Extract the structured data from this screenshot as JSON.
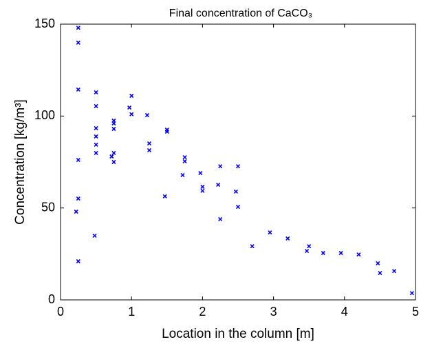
{
  "chart_data": {
    "type": "scatter",
    "title": "Final concentration of CaCO₃",
    "x_label": "Location in the column [m]",
    "y_label": "Concentration [kg/m³]",
    "marker": "x",
    "color": "#0000ff",
    "x": [
      0.22,
      0.25,
      0.25,
      0.25,
      0.25,
      0.25,
      0.25,
      0.48,
      0.5,
      0.5,
      0.5,
      0.5,
      0.5,
      0.5,
      0.72,
      0.75,
      0.75,
      0.75,
      0.75,
      0.75,
      0.97,
      1.0,
      1.0,
      1.22,
      1.25,
      1.25,
      1.47,
      1.5,
      1.5,
      1.72,
      1.75,
      1.75,
      1.97,
      2.0,
      2.0,
      2.22,
      2.25,
      2.25,
      2.47,
      2.5,
      2.5,
      2.7,
      2.95,
      3.2,
      3.47,
      3.5,
      3.7,
      3.95,
      4.2,
      4.47,
      4.5,
      4.7,
      4.95
    ],
    "values": [
      48,
      148,
      139.9,
      114.4,
      76.1,
      55.1,
      21,
      34.9,
      112.9,
      105.4,
      93.4,
      88.9,
      84.4,
      79.9,
      78,
      97.5,
      96,
      93,
      79.9,
      75,
      104.6,
      111,
      101,
      100.5,
      85.1,
      81.4,
      56.3,
      92.6,
      91.5,
      67.9,
      77.6,
      75.4,
      69,
      61.5,
      59.3,
      62.6,
      72.7,
      43.9,
      58.9,
      72.7,
      50.6,
      29.2,
      36.7,
      33.4,
      26.6,
      29.2,
      25.5,
      25.5,
      24.7,
      19.9,
      14.6,
      15.7,
      3.7
    ],
    "xlim": [
      0,
      5
    ],
    "ylim": [
      0,
      150
    ],
    "xticks": [
      0,
      1,
      2,
      3,
      4,
      5
    ],
    "yticks": [
      0,
      50,
      100,
      150
    ]
  }
}
